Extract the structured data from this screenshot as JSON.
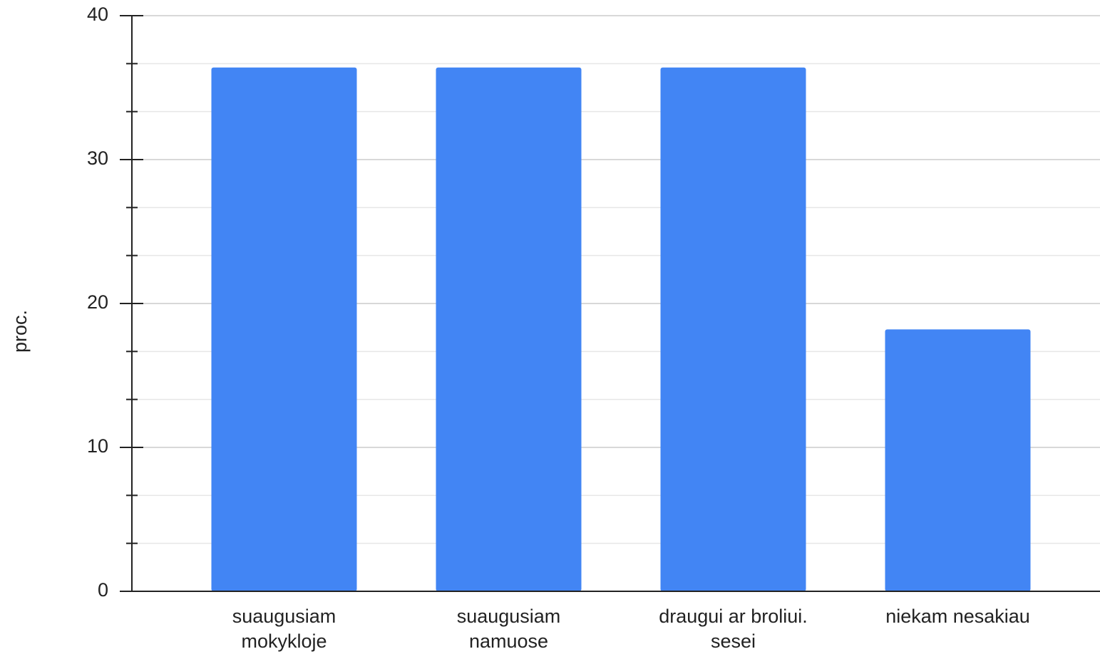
{
  "chart_data": {
    "type": "bar",
    "y_label": "proc.",
    "categories": [
      "suaugusiam mokykloje",
      "suaugusiam namuose",
      "draugui ar broliui. sesei",
      "niekam nesakiau"
    ],
    "values": [
      36.4,
      36.4,
      36.4,
      18.2
    ],
    "color": "#4285f4",
    "ylim": [
      0,
      40
    ],
    "yticks": [
      0,
      10,
      20,
      30,
      40
    ],
    "grid": true,
    "minor_grid_lines_per_interval": 2
  }
}
